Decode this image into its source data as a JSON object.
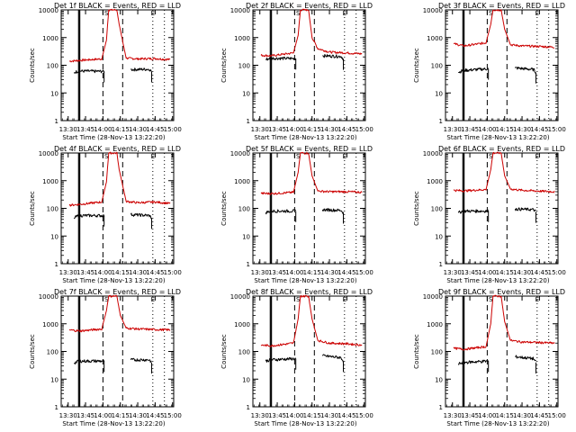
{
  "layout": {
    "rows": 3,
    "cols": 3
  },
  "chart_data": [
    {
      "type": "line",
      "title": "Det  1f BLACK = Events, RED = LLD",
      "xlabel": "Start Time (28-Nov-13 13:22:20)",
      "ylabel": "Counts/sec",
      "yscale": "log",
      "ylim": [
        1,
        10000
      ],
      "xticks": [
        "13:30",
        "13:45",
        "14:00",
        "14:15",
        "14:30",
        "14:45",
        "15:00"
      ],
      "yticks": [
        "1",
        "10",
        "100",
        "1000",
        "10000"
      ],
      "solid_vlines": [
        "13:39",
        "13:40"
      ],
      "dashed_vlines": [
        "14:00",
        "14:17"
      ],
      "dotted_vlines": [
        "14:43",
        "14:53"
      ],
      "markers": [
        {
          "label": "S",
          "x": "14:03"
        },
        {
          "label": "E",
          "x": "14:43"
        }
      ],
      "series": [
        {
          "color": "#cc0000",
          "x": [
            "13:31",
            "13:40",
            "13:59",
            "14:03",
            "14:05",
            "14:12",
            "14:14",
            "14:20",
            "14:30",
            "14:45",
            "14:58"
          ],
          "y": [
            140,
            150,
            170,
            800,
            10000,
            10000,
            3000,
            180,
            170,
            175,
            160
          ]
        },
        {
          "color": "#000000",
          "x": [
            "13:35",
            "13:39",
            "14:01",
            "14:17",
            "14:24",
            "14:40",
            "14:42"
          ],
          "y": [
            55,
            62,
            60,
            null,
            70,
            72,
            60
          ]
        }
      ]
    },
    {
      "type": "line",
      "title": "Det  2f BLACK = Events, RED = LLD",
      "xlabel": "Start Time (28-Nov-13 13:22:20)",
      "ylabel": "Counts/sec",
      "yscale": "log",
      "ylim": [
        1,
        10000
      ],
      "xticks": [
        "13:30",
        "13:45",
        "14:00",
        "14:15",
        "14:30",
        "14:45",
        "15:00"
      ],
      "yticks": [
        "1",
        "10",
        "100",
        "1000",
        "10000"
      ],
      "solid_vlines": [
        "13:39",
        "13:40"
      ],
      "dashed_vlines": [
        "14:00",
        "14:17"
      ],
      "dotted_vlines": [
        "14:43",
        "14:53"
      ],
      "markers": [
        {
          "label": "S",
          "x": "14:03"
        },
        {
          "label": "E",
          "x": "14:43"
        }
      ],
      "series": [
        {
          "color": "#cc0000",
          "x": [
            "13:31",
            "13:40",
            "13:59",
            "14:03",
            "14:05",
            "14:12",
            "14:15",
            "14:20",
            "14:30",
            "14:45",
            "14:58"
          ],
          "y": [
            230,
            220,
            280,
            1200,
            10000,
            10000,
            1000,
            400,
            300,
            280,
            260
          ]
        },
        {
          "color": "#000000",
          "x": [
            "13:35",
            "13:39",
            "14:01",
            "14:17",
            "14:24",
            "14:40",
            "14:42"
          ],
          "y": [
            160,
            180,
            175,
            null,
            220,
            210,
            170
          ]
        }
      ]
    },
    {
      "type": "line",
      "title": "Det  3f BLACK = Events, RED = LLD",
      "xlabel": "Start Time (28-Nov-13 13:22:20)",
      "ylabel": "Counts/sec",
      "yscale": "log",
      "ylim": [
        1,
        10000
      ],
      "xticks": [
        "13:30",
        "13:45",
        "14:00",
        "14:15",
        "14:30",
        "14:45",
        "15:00"
      ],
      "yticks": [
        "1",
        "10",
        "100",
        "1000",
        "10000"
      ],
      "solid_vlines": [
        "13:39",
        "13:40"
      ],
      "dashed_vlines": [
        "14:00",
        "14:17"
      ],
      "dotted_vlines": [
        "14:43",
        "14:53"
      ],
      "markers": [
        {
          "label": "S",
          "x": "14:03"
        },
        {
          "label": "E",
          "x": "14:43"
        }
      ],
      "series": [
        {
          "color": "#cc0000",
          "x": [
            "13:31",
            "13:40",
            "13:59",
            "14:03",
            "14:05",
            "14:12",
            "14:15",
            "14:20",
            "14:30",
            "14:45",
            "14:58"
          ],
          "y": [
            600,
            500,
            650,
            3000,
            10000,
            10000,
            2000,
            550,
            500,
            480,
            450
          ]
        },
        {
          "color": "#000000",
          "x": [
            "13:35",
            "13:39",
            "14:01",
            "14:17",
            "14:24",
            "14:40",
            "14:42"
          ],
          "y": [
            55,
            65,
            75,
            null,
            80,
            70,
            55
          ]
        }
      ]
    },
    {
      "type": "line",
      "title": "Det  4f BLACK = Events, RED = LLD",
      "xlabel": "Start Time (28-Nov-13 13:22:20)",
      "ylabel": "Counts/sec",
      "yscale": "log",
      "ylim": [
        1,
        10000
      ],
      "xticks": [
        "13:30",
        "13:45",
        "14:00",
        "14:15",
        "14:30",
        "14:45",
        "15:00"
      ],
      "yticks": [
        "1",
        "10",
        "100",
        "1000",
        "10000"
      ],
      "solid_vlines": [
        "13:39",
        "13:40"
      ],
      "dashed_vlines": [
        "14:00",
        "14:17"
      ],
      "dotted_vlines": [
        "14:43",
        "14:53"
      ],
      "markers": [
        {
          "label": "S",
          "x": "14:03"
        },
        {
          "label": "E",
          "x": "14:43"
        }
      ],
      "series": [
        {
          "color": "#cc0000",
          "x": [
            "13:31",
            "13:40",
            "13:59",
            "14:03",
            "14:05",
            "14:12",
            "14:14",
            "14:20",
            "14:30",
            "14:45",
            "14:58"
          ],
          "y": [
            130,
            140,
            170,
            900,
            10000,
            10000,
            2500,
            180,
            160,
            170,
            150
          ]
        },
        {
          "color": "#000000",
          "x": [
            "13:35",
            "13:39",
            "14:01",
            "14:17",
            "14:24",
            "14:40",
            "14:42"
          ],
          "y": [
            45,
            55,
            55,
            null,
            60,
            55,
            45
          ]
        }
      ]
    },
    {
      "type": "line",
      "title": "Det  5f BLACK = Events, RED = LLD",
      "xlabel": "Start Time (28-Nov-13 13:22:20)",
      "ylabel": "Counts/sec",
      "yscale": "log",
      "ylim": [
        1,
        10000
      ],
      "xticks": [
        "13:30",
        "13:45",
        "14:00",
        "14:15",
        "14:30",
        "14:45",
        "15:00"
      ],
      "yticks": [
        "1",
        "10",
        "100",
        "1000",
        "10000"
      ],
      "solid_vlines": [
        "13:39",
        "13:40"
      ],
      "dashed_vlines": [
        "14:00",
        "14:17"
      ],
      "dotted_vlines": [
        "14:43",
        "14:53"
      ],
      "markers": [
        {
          "label": "S",
          "x": "14:03"
        },
        {
          "label": "E",
          "x": "14:43"
        }
      ],
      "series": [
        {
          "color": "#cc0000",
          "x": [
            "13:31",
            "13:40",
            "13:59",
            "14:03",
            "14:05",
            "14:12",
            "14:15",
            "14:20",
            "14:30",
            "14:45",
            "14:58"
          ],
          "y": [
            350,
            340,
            380,
            2000,
            10000,
            10000,
            1500,
            420,
            400,
            400,
            380
          ]
        },
        {
          "color": "#000000",
          "x": [
            "13:35",
            "13:39",
            "14:01",
            "14:17",
            "14:24",
            "14:40",
            "14:42"
          ],
          "y": [
            70,
            80,
            80,
            null,
            90,
            85,
            70
          ]
        }
      ]
    },
    {
      "type": "line",
      "title": "Det  6f BLACK = Events, RED = LLD",
      "xlabel": "Start Time (28-Nov-13 13:22:20)",
      "ylabel": "Counts/sec",
      "yscale": "log",
      "ylim": [
        1,
        10000
      ],
      "xticks": [
        "13:30",
        "13:45",
        "14:00",
        "14:15",
        "14:30",
        "14:45",
        "15:00"
      ],
      "yticks": [
        "1",
        "10",
        "100",
        "1000",
        "10000"
      ],
      "solid_vlines": [
        "13:39",
        "13:40"
      ],
      "dashed_vlines": [
        "14:00",
        "14:17"
      ],
      "dotted_vlines": [
        "14:43",
        "14:53"
      ],
      "markers": [
        {
          "label": "S",
          "x": "14:03"
        },
        {
          "label": "E",
          "x": "14:43"
        }
      ],
      "series": [
        {
          "color": "#cc0000",
          "x": [
            "13:31",
            "13:40",
            "13:59",
            "14:03",
            "14:05",
            "14:12",
            "14:15",
            "14:20",
            "14:30",
            "14:45",
            "14:58"
          ],
          "y": [
            450,
            430,
            480,
            2500,
            10000,
            10000,
            1500,
            500,
            450,
            420,
            400
          ]
        },
        {
          "color": "#000000",
          "x": [
            "13:35",
            "13:39",
            "14:01",
            "14:17",
            "14:24",
            "14:40",
            "14:42"
          ],
          "y": [
            70,
            80,
            80,
            null,
            95,
            90,
            75
          ]
        }
      ]
    },
    {
      "type": "line",
      "title": "Det  7f BLACK = Events, RED = LLD",
      "xlabel": "Start Time (28-Nov-13 13:22:20)",
      "ylabel": "Counts/sec",
      "yscale": "log",
      "ylim": [
        1,
        10000
      ],
      "xticks": [
        "13:30",
        "13:45",
        "14:00",
        "14:15",
        "14:30",
        "14:45",
        "15:00"
      ],
      "yticks": [
        "1",
        "10",
        "100",
        "1000",
        "10000"
      ],
      "solid_vlines": [
        "13:39",
        "13:40"
      ],
      "dashed_vlines": [
        "14:00",
        "14:17"
      ],
      "dotted_vlines": [
        "14:43",
        "14:53"
      ],
      "markers": [
        {
          "label": "S",
          "x": "14:03"
        },
        {
          "label": "E",
          "x": "14:43"
        }
      ],
      "series": [
        {
          "color": "#cc0000",
          "x": [
            "13:31",
            "13:40",
            "13:59",
            "14:03",
            "14:05",
            "14:12",
            "14:15",
            "14:20",
            "14:30",
            "14:45",
            "14:58"
          ],
          "y": [
            600,
            550,
            650,
            3000,
            10000,
            10000,
            2000,
            700,
            650,
            620,
            600
          ]
        },
        {
          "color": "#000000",
          "x": [
            "13:35",
            "13:39",
            "14:01",
            "14:17",
            "14:24",
            "14:40",
            "14:42"
          ],
          "y": [
            38,
            45,
            45,
            null,
            50,
            50,
            40
          ]
        }
      ]
    },
    {
      "type": "line",
      "title": "Det  8f BLACK = Events, RED = LLD",
      "xlabel": "Start Time (28-Nov-13 13:22:20)",
      "ylabel": "Counts/sec",
      "yscale": "log",
      "ylim": [
        1,
        10000
      ],
      "xticks": [
        "13:30",
        "13:45",
        "14:00",
        "14:15",
        "14:30",
        "14:45",
        "15:00"
      ],
      "yticks": [
        "1",
        "10",
        "100",
        "1000",
        "10000"
      ],
      "solid_vlines": [
        "13:39",
        "13:40"
      ],
      "dashed_vlines": [
        "14:00",
        "14:17"
      ],
      "dotted_vlines": [
        "14:43",
        "14:53"
      ],
      "markers": [
        {
          "label": "S",
          "x": "14:03"
        },
        {
          "label": "E",
          "x": "14:43"
        }
      ],
      "series": [
        {
          "color": "#cc0000",
          "x": [
            "13:31",
            "13:40",
            "13:59",
            "14:03",
            "14:05",
            "14:12",
            "14:15",
            "14:20",
            "14:30",
            "14:45",
            "14:58"
          ],
          "y": [
            170,
            160,
            200,
            1500,
            10000,
            10000,
            1500,
            250,
            200,
            190,
            170
          ]
        },
        {
          "color": "#000000",
          "x": [
            "13:35",
            "13:39",
            "14:01",
            "14:17",
            "14:24",
            "14:40",
            "14:42"
          ],
          "y": [
            45,
            50,
            55,
            null,
            70,
            60,
            45
          ]
        }
      ]
    },
    {
      "type": "line",
      "title": "Det  9f BLACK = Events, RED = LLD",
      "xlabel": "Start Time (28-Nov-13 13:22:20)",
      "ylabel": "Counts/sec",
      "yscale": "log",
      "ylim": [
        1,
        10000
      ],
      "xticks": [
        "13:30",
        "13:45",
        "14:00",
        "14:15",
        "14:30",
        "14:45",
        "15:00"
      ],
      "yticks": [
        "1",
        "10",
        "100",
        "1000",
        "10000"
      ],
      "solid_vlines": [
        "13:39",
        "13:40"
      ],
      "dashed_vlines": [
        "14:00",
        "14:17"
      ],
      "dotted_vlines": [
        "14:43",
        "14:53"
      ],
      "markers": [
        {
          "label": "S",
          "x": "14:03"
        },
        {
          "label": "E",
          "x": "14:43"
        }
      ],
      "series": [
        {
          "color": "#cc0000",
          "x": [
            "13:31",
            "13:40",
            "13:59",
            "14:03",
            "14:05",
            "14:12",
            "14:15",
            "14:20",
            "14:30",
            "14:45",
            "14:58"
          ],
          "y": [
            130,
            120,
            150,
            1000,
            10000,
            10000,
            1200,
            250,
            220,
            210,
            200
          ]
        },
        {
          "color": "#000000",
          "x": [
            "13:35",
            "13:39",
            "14:01",
            "14:17",
            "14:24",
            "14:40",
            "14:42"
          ],
          "y": [
            35,
            40,
            45,
            null,
            65,
            55,
            40
          ]
        }
      ]
    }
  ]
}
